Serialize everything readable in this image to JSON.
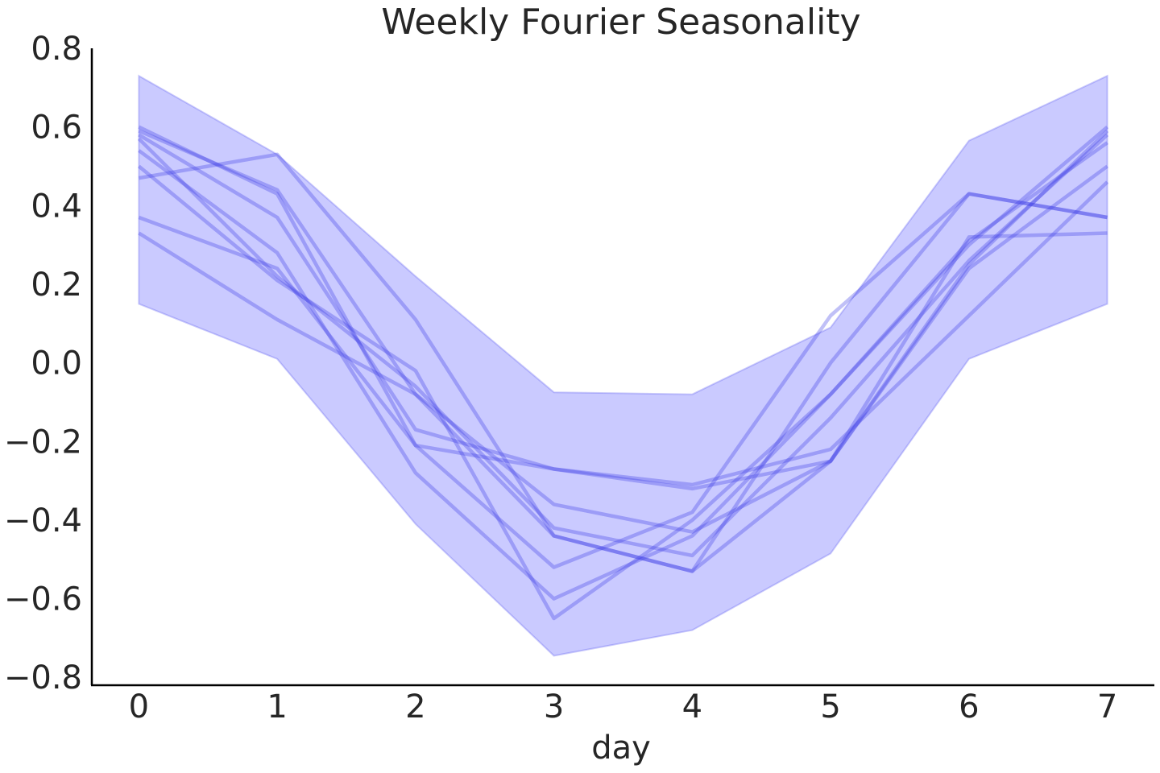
{
  "chart_data": {
    "type": "line",
    "title": "Weekly Fourier Seasonality",
    "xlabel": "day",
    "ylabel": "",
    "x": [
      0,
      1,
      2,
      3,
      4,
      5,
      6,
      7
    ],
    "xlim": [
      -0.34,
      7.34
    ],
    "ylim": [
      -0.82,
      0.8
    ],
    "xticks": [
      "0",
      "1",
      "2",
      "3",
      "4",
      "5",
      "6",
      "7"
    ],
    "yticks": [
      "0.8",
      "0.6",
      "0.4",
      "0.2",
      "0.0",
      "−0.2",
      "−0.4",
      "−0.6",
      "−0.8"
    ],
    "ytick_values": [
      0.8,
      0.6,
      0.4,
      0.2,
      0.0,
      -0.2,
      -0.4,
      -0.6,
      -0.8
    ],
    "band": {
      "upper": [
        0.73,
        0.53,
        0.22,
        -0.075,
        -0.08,
        0.09,
        0.565,
        0.73
      ],
      "lower": [
        0.15,
        0.01,
        -0.41,
        -0.745,
        -0.68,
        -0.485,
        0.01,
        0.15
      ]
    },
    "series": [
      {
        "values": [
          0.6,
          0.43,
          -0.21,
          -0.52,
          -0.38,
          0.12,
          0.43,
          0.37
        ]
      },
      {
        "values": [
          0.58,
          0.37,
          -0.17,
          -0.27,
          -0.32,
          -0.25,
          0.32,
          0.33
        ]
      },
      {
        "values": [
          0.57,
          0.22,
          -0.06,
          -0.42,
          -0.49,
          -0.14,
          0.26,
          0.58
        ]
      },
      {
        "values": [
          0.54,
          0.28,
          -0.28,
          -0.6,
          -0.44,
          -0.08,
          0.3,
          0.6
        ]
      },
      {
        "values": [
          0.5,
          0.21,
          -0.02,
          -0.65,
          -0.4,
          -0.08,
          0.31,
          0.56
        ]
      },
      {
        "values": [
          0.47,
          0.53,
          0.11,
          -0.44,
          -0.53,
          0.0,
          0.43,
          0.37
        ]
      },
      {
        "values": [
          0.37,
          0.24,
          -0.21,
          -0.27,
          -0.31,
          -0.22,
          0.12,
          0.46
        ]
      },
      {
        "values": [
          0.33,
          0.11,
          -0.08,
          -0.36,
          -0.43,
          -0.25,
          0.24,
          0.5
        ]
      },
      {
        "values": [
          0.59,
          0.44,
          -0.08,
          -0.44,
          -0.53,
          -0.25,
          0.25,
          0.59
        ]
      }
    ],
    "grid": false,
    "colors": {
      "band_fill": "#9999ff",
      "band_edge": "#5555ee",
      "line": "#3f3fe6",
      "axis": "#000000",
      "text": "#262626"
    }
  }
}
